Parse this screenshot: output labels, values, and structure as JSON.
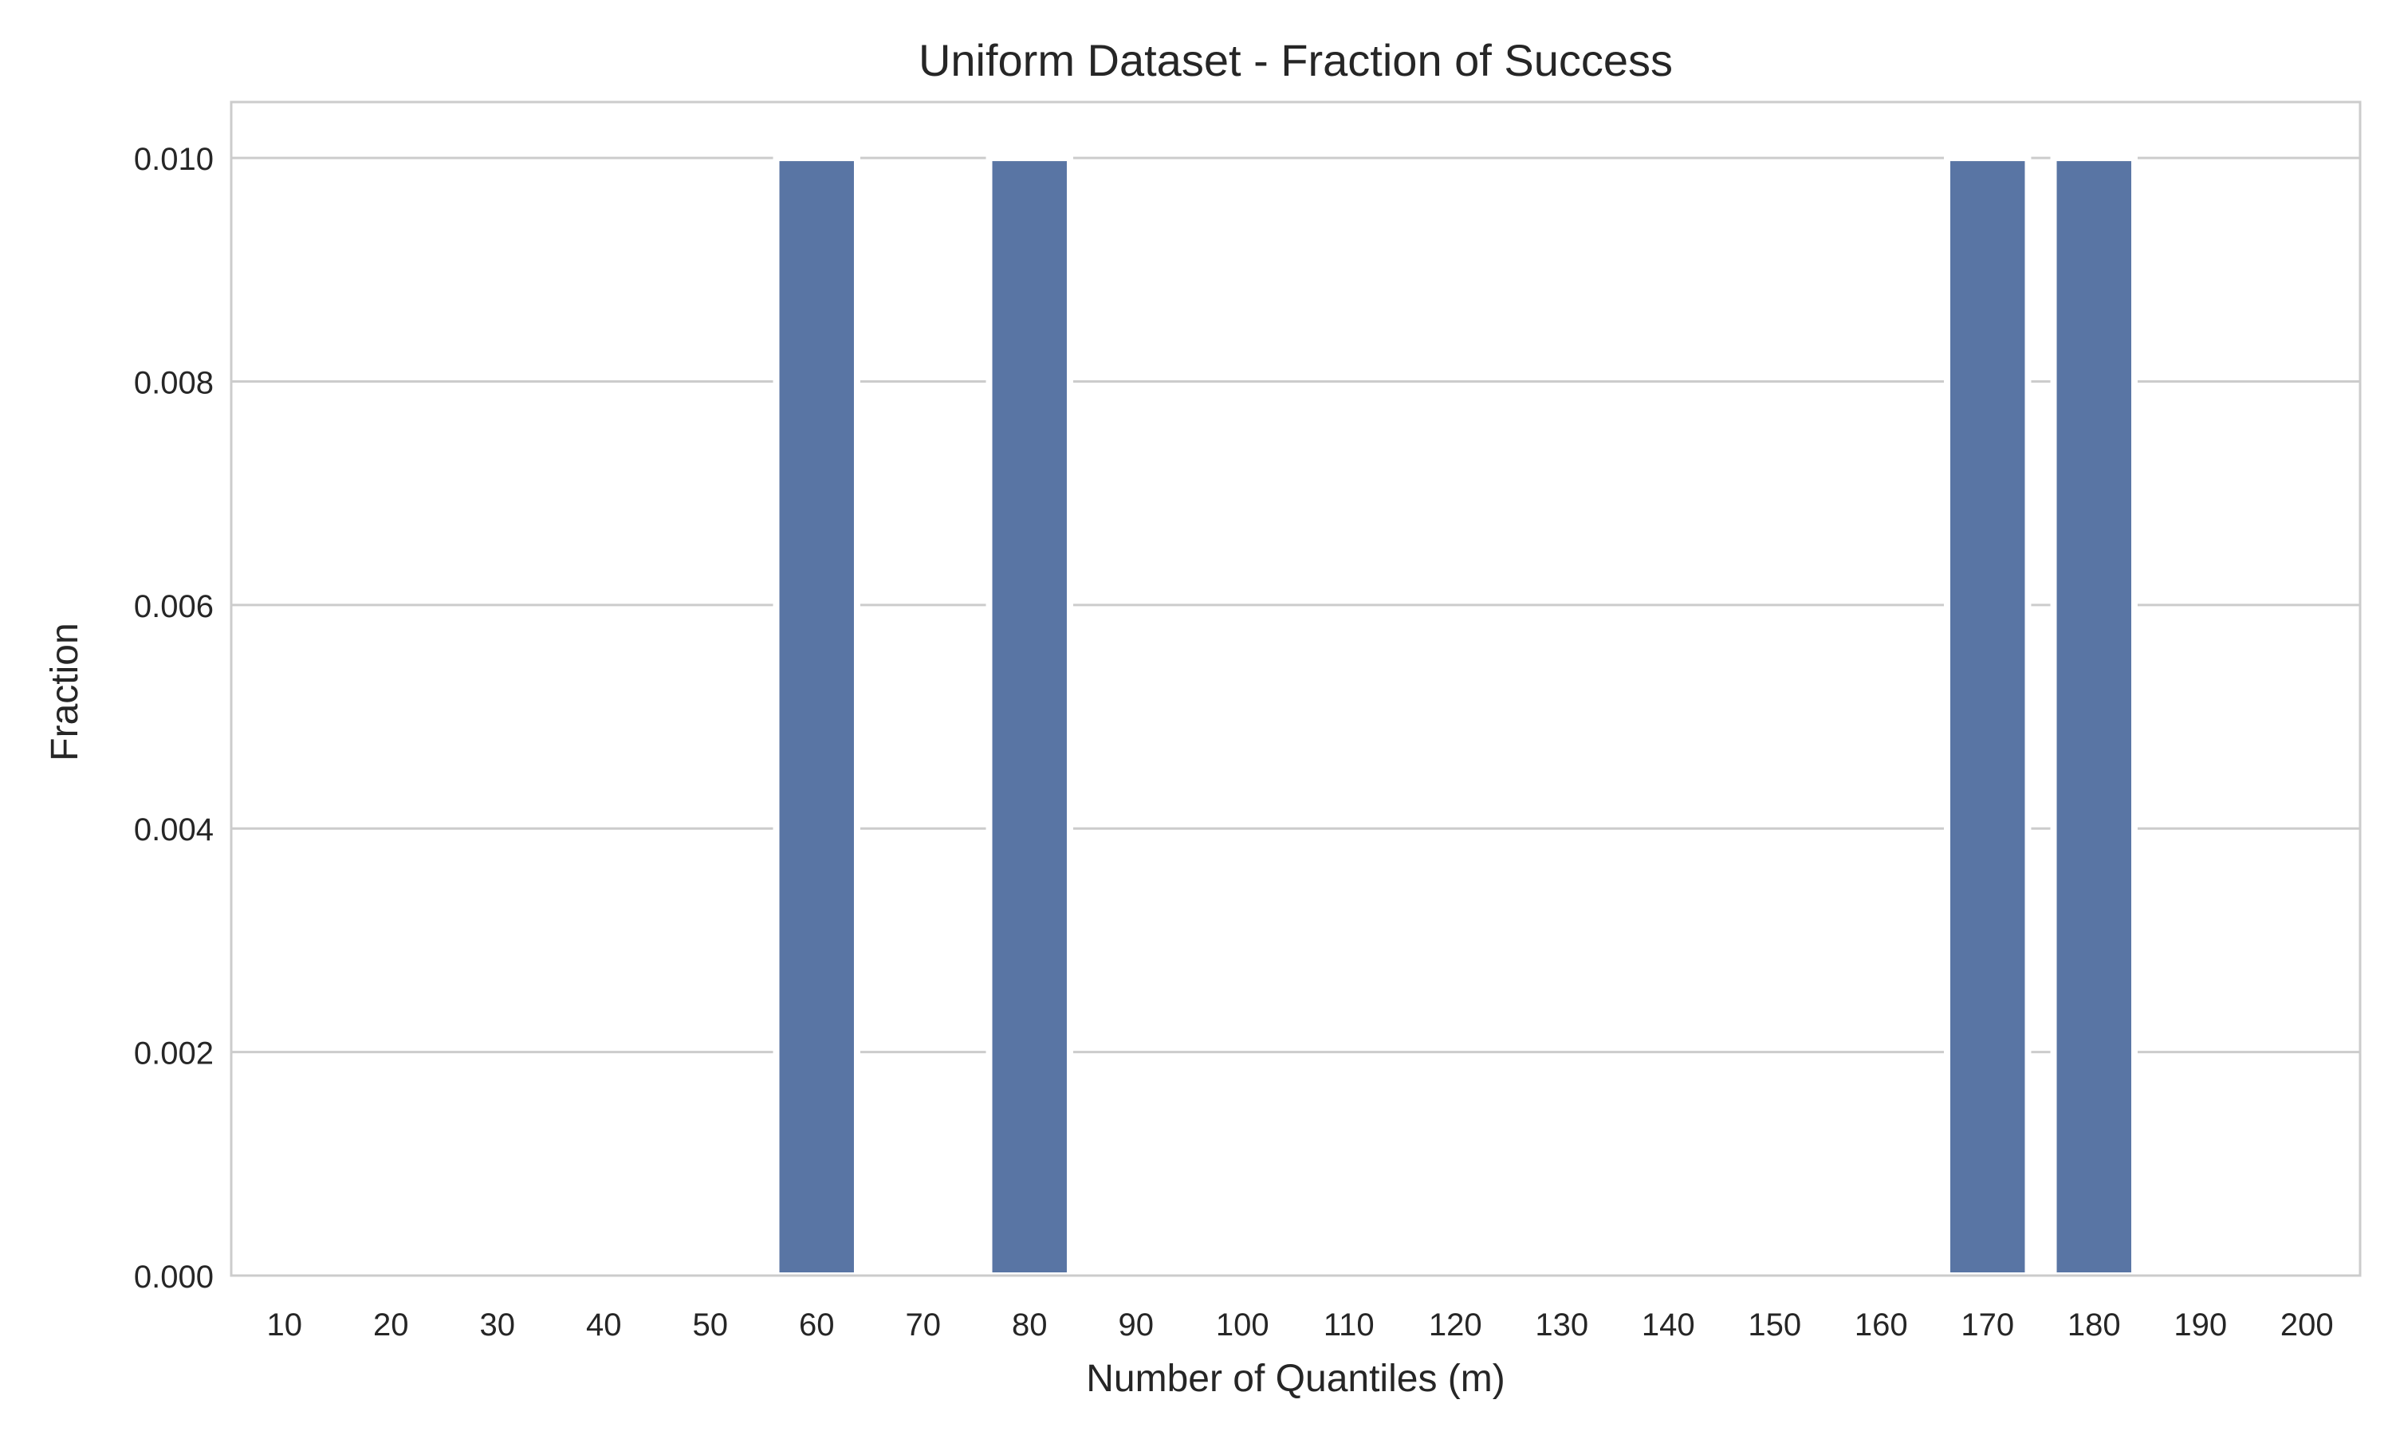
{
  "chart_data": {
    "type": "bar",
    "title": "Uniform Dataset - Fraction of Success",
    "xlabel": "Number of Quantiles (m)",
    "ylabel": "Fraction",
    "categories": [
      "10",
      "20",
      "30",
      "40",
      "50",
      "60",
      "70",
      "80",
      "90",
      "100",
      "110",
      "120",
      "130",
      "140",
      "150",
      "160",
      "170",
      "180",
      "190",
      "200"
    ],
    "values": [
      0,
      0,
      0,
      0,
      0,
      0.01,
      0,
      0.01,
      0,
      0,
      0,
      0,
      0,
      0,
      0,
      0,
      0.01,
      0.01,
      0,
      0
    ],
    "ylim": [
      0,
      0.0105
    ],
    "yticks": [
      "0.000",
      "0.002",
      "0.004",
      "0.006",
      "0.008",
      "0.010"
    ],
    "grid": "horizontal",
    "legend": "none",
    "colors": {
      "bar": "#5975a4",
      "grid": "#cccccc",
      "frame": "#cccccc",
      "text": "#262626"
    }
  }
}
